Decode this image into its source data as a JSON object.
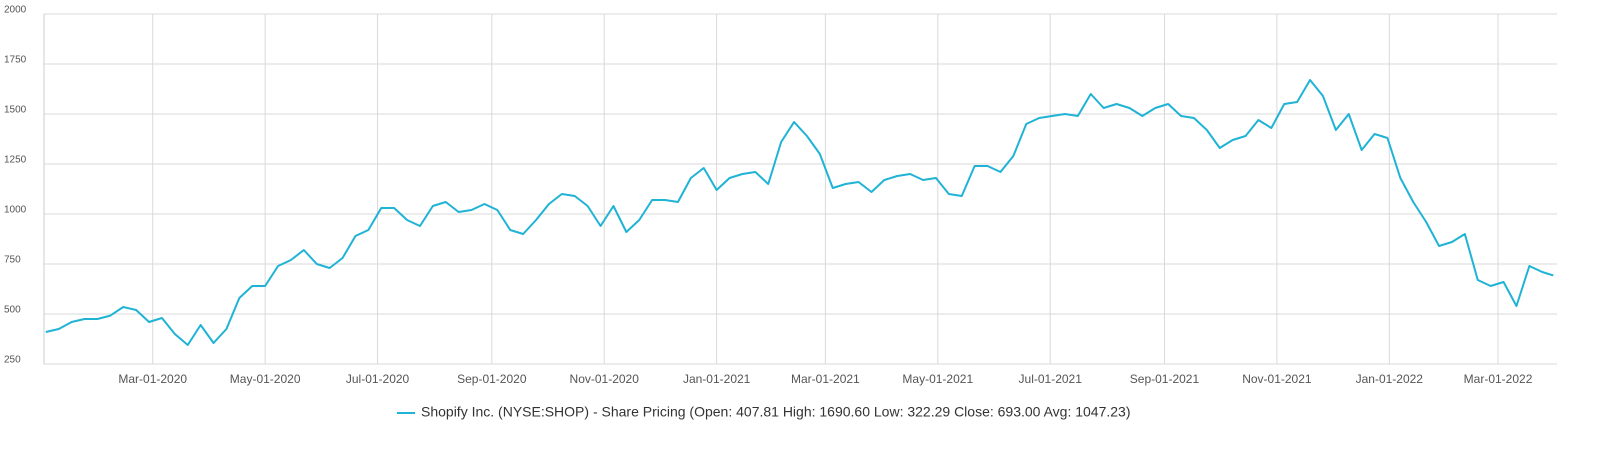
{
  "chart_data": {
    "type": "line",
    "x": [
      "2020-01-03",
      "2020-01-10",
      "2020-01-17",
      "2020-01-24",
      "2020-01-31",
      "2020-02-07",
      "2020-02-14",
      "2020-02-21",
      "2020-02-28",
      "2020-03-06",
      "2020-03-13",
      "2020-03-20",
      "2020-03-27",
      "2020-04-03",
      "2020-04-10",
      "2020-04-17",
      "2020-04-24",
      "2020-05-01",
      "2020-05-08",
      "2020-05-15",
      "2020-05-22",
      "2020-05-29",
      "2020-06-05",
      "2020-06-12",
      "2020-06-19",
      "2020-06-26",
      "2020-07-03",
      "2020-07-10",
      "2020-07-17",
      "2020-07-24",
      "2020-07-31",
      "2020-08-07",
      "2020-08-14",
      "2020-08-21",
      "2020-08-28",
      "2020-09-04",
      "2020-09-11",
      "2020-09-18",
      "2020-09-25",
      "2020-10-02",
      "2020-10-09",
      "2020-10-16",
      "2020-10-23",
      "2020-10-30",
      "2020-11-06",
      "2020-11-13",
      "2020-11-20",
      "2020-11-27",
      "2020-12-04",
      "2020-12-11",
      "2020-12-18",
      "2020-12-25",
      "2021-01-01",
      "2021-01-08",
      "2021-01-15",
      "2021-01-22",
      "2021-01-29",
      "2021-02-05",
      "2021-02-12",
      "2021-02-19",
      "2021-02-26",
      "2021-03-05",
      "2021-03-12",
      "2021-03-19",
      "2021-03-26",
      "2021-04-02",
      "2021-04-09",
      "2021-04-16",
      "2021-04-23",
      "2021-04-30",
      "2021-05-07",
      "2021-05-14",
      "2021-05-21",
      "2021-05-28",
      "2021-06-04",
      "2021-06-11",
      "2021-06-18",
      "2021-06-25",
      "2021-07-02",
      "2021-07-09",
      "2021-07-16",
      "2021-07-23",
      "2021-07-30",
      "2021-08-06",
      "2021-08-13",
      "2021-08-20",
      "2021-08-27",
      "2021-09-03",
      "2021-09-10",
      "2021-09-17",
      "2021-09-24",
      "2021-10-01",
      "2021-10-08",
      "2021-10-15",
      "2021-10-22",
      "2021-10-29",
      "2021-11-05",
      "2021-11-12",
      "2021-11-19",
      "2021-11-26",
      "2021-12-03",
      "2021-12-10",
      "2021-12-17",
      "2021-12-24",
      "2021-12-31",
      "2022-01-07",
      "2022-01-14",
      "2022-01-21",
      "2022-01-28",
      "2022-02-04",
      "2022-02-11",
      "2022-02-18",
      "2022-02-25",
      "2022-03-04",
      "2022-03-11",
      "2022-03-18",
      "2022-03-25",
      "2022-03-31"
    ],
    "series": [
      {
        "name": "Shopify Inc. (NYSE:SHOP) - Share Pricing (Open: 407.81 High: 1690.60 Low: 322.29 Close: 693.00 Avg: 1047.23)",
        "color": "#1fb3d5",
        "values": [
          410,
          425,
          460,
          475,
          475,
          492,
          535,
          520,
          460,
          480,
          400,
          345,
          445,
          355,
          425,
          580,
          640,
          640,
          740,
          770,
          820,
          750,
          730,
          780,
          890,
          920,
          1030,
          1030,
          970,
          940,
          1040,
          1060,
          1010,
          1020,
          1050,
          1020,
          920,
          900,
          970,
          1050,
          1100,
          1090,
          1040,
          940,
          1040,
          910,
          970,
          1070,
          1070,
          1060,
          1180,
          1230,
          1120,
          1180,
          1200,
          1210,
          1150,
          1360,
          1460,
          1390,
          1300,
          1130,
          1150,
          1160,
          1110,
          1170,
          1190,
          1200,
          1170,
          1180,
          1100,
          1090,
          1240,
          1240,
          1210,
          1290,
          1450,
          1480,
          1490,
          1500,
          1490,
          1600,
          1530,
          1550,
          1530,
          1490,
          1530,
          1550,
          1490,
          1480,
          1420,
          1330,
          1370,
          1390,
          1470,
          1430,
          1550,
          1560,
          1670,
          1590,
          1420,
          1500,
          1320,
          1400,
          1380,
          1180,
          1060,
          960,
          840,
          860,
          900,
          670,
          640,
          660,
          540,
          740,
          710,
          693
        ]
      }
    ],
    "xlim": [
      "2020-01-02",
      "2022-04-02"
    ],
    "xticks": [
      {
        "value": "2020-03-01",
        "label": "Mar-01-2020"
      },
      {
        "value": "2020-05-01",
        "label": "May-01-2020"
      },
      {
        "value": "2020-07-01",
        "label": "Jul-01-2020"
      },
      {
        "value": "2020-09-01",
        "label": "Sep-01-2020"
      },
      {
        "value": "2020-11-01",
        "label": "Nov-01-2020"
      },
      {
        "value": "2021-01-01",
        "label": "Jan-01-2021"
      },
      {
        "value": "2021-03-01",
        "label": "Mar-01-2021"
      },
      {
        "value": "2021-05-01",
        "label": "May-01-2021"
      },
      {
        "value": "2021-07-01",
        "label": "Jul-01-2021"
      },
      {
        "value": "2021-09-01",
        "label": "Sep-01-2021"
      },
      {
        "value": "2021-11-01",
        "label": "Nov-01-2021"
      },
      {
        "value": "2022-01-01",
        "label": "Jan-01-2022"
      },
      {
        "value": "2022-03-01",
        "label": "Mar-01-2022"
      }
    ],
    "ylim": [
      250,
      2000
    ],
    "yticks": [
      250,
      500,
      750,
      1000,
      1250,
      1500,
      1750,
      2000
    ],
    "grid": true
  }
}
